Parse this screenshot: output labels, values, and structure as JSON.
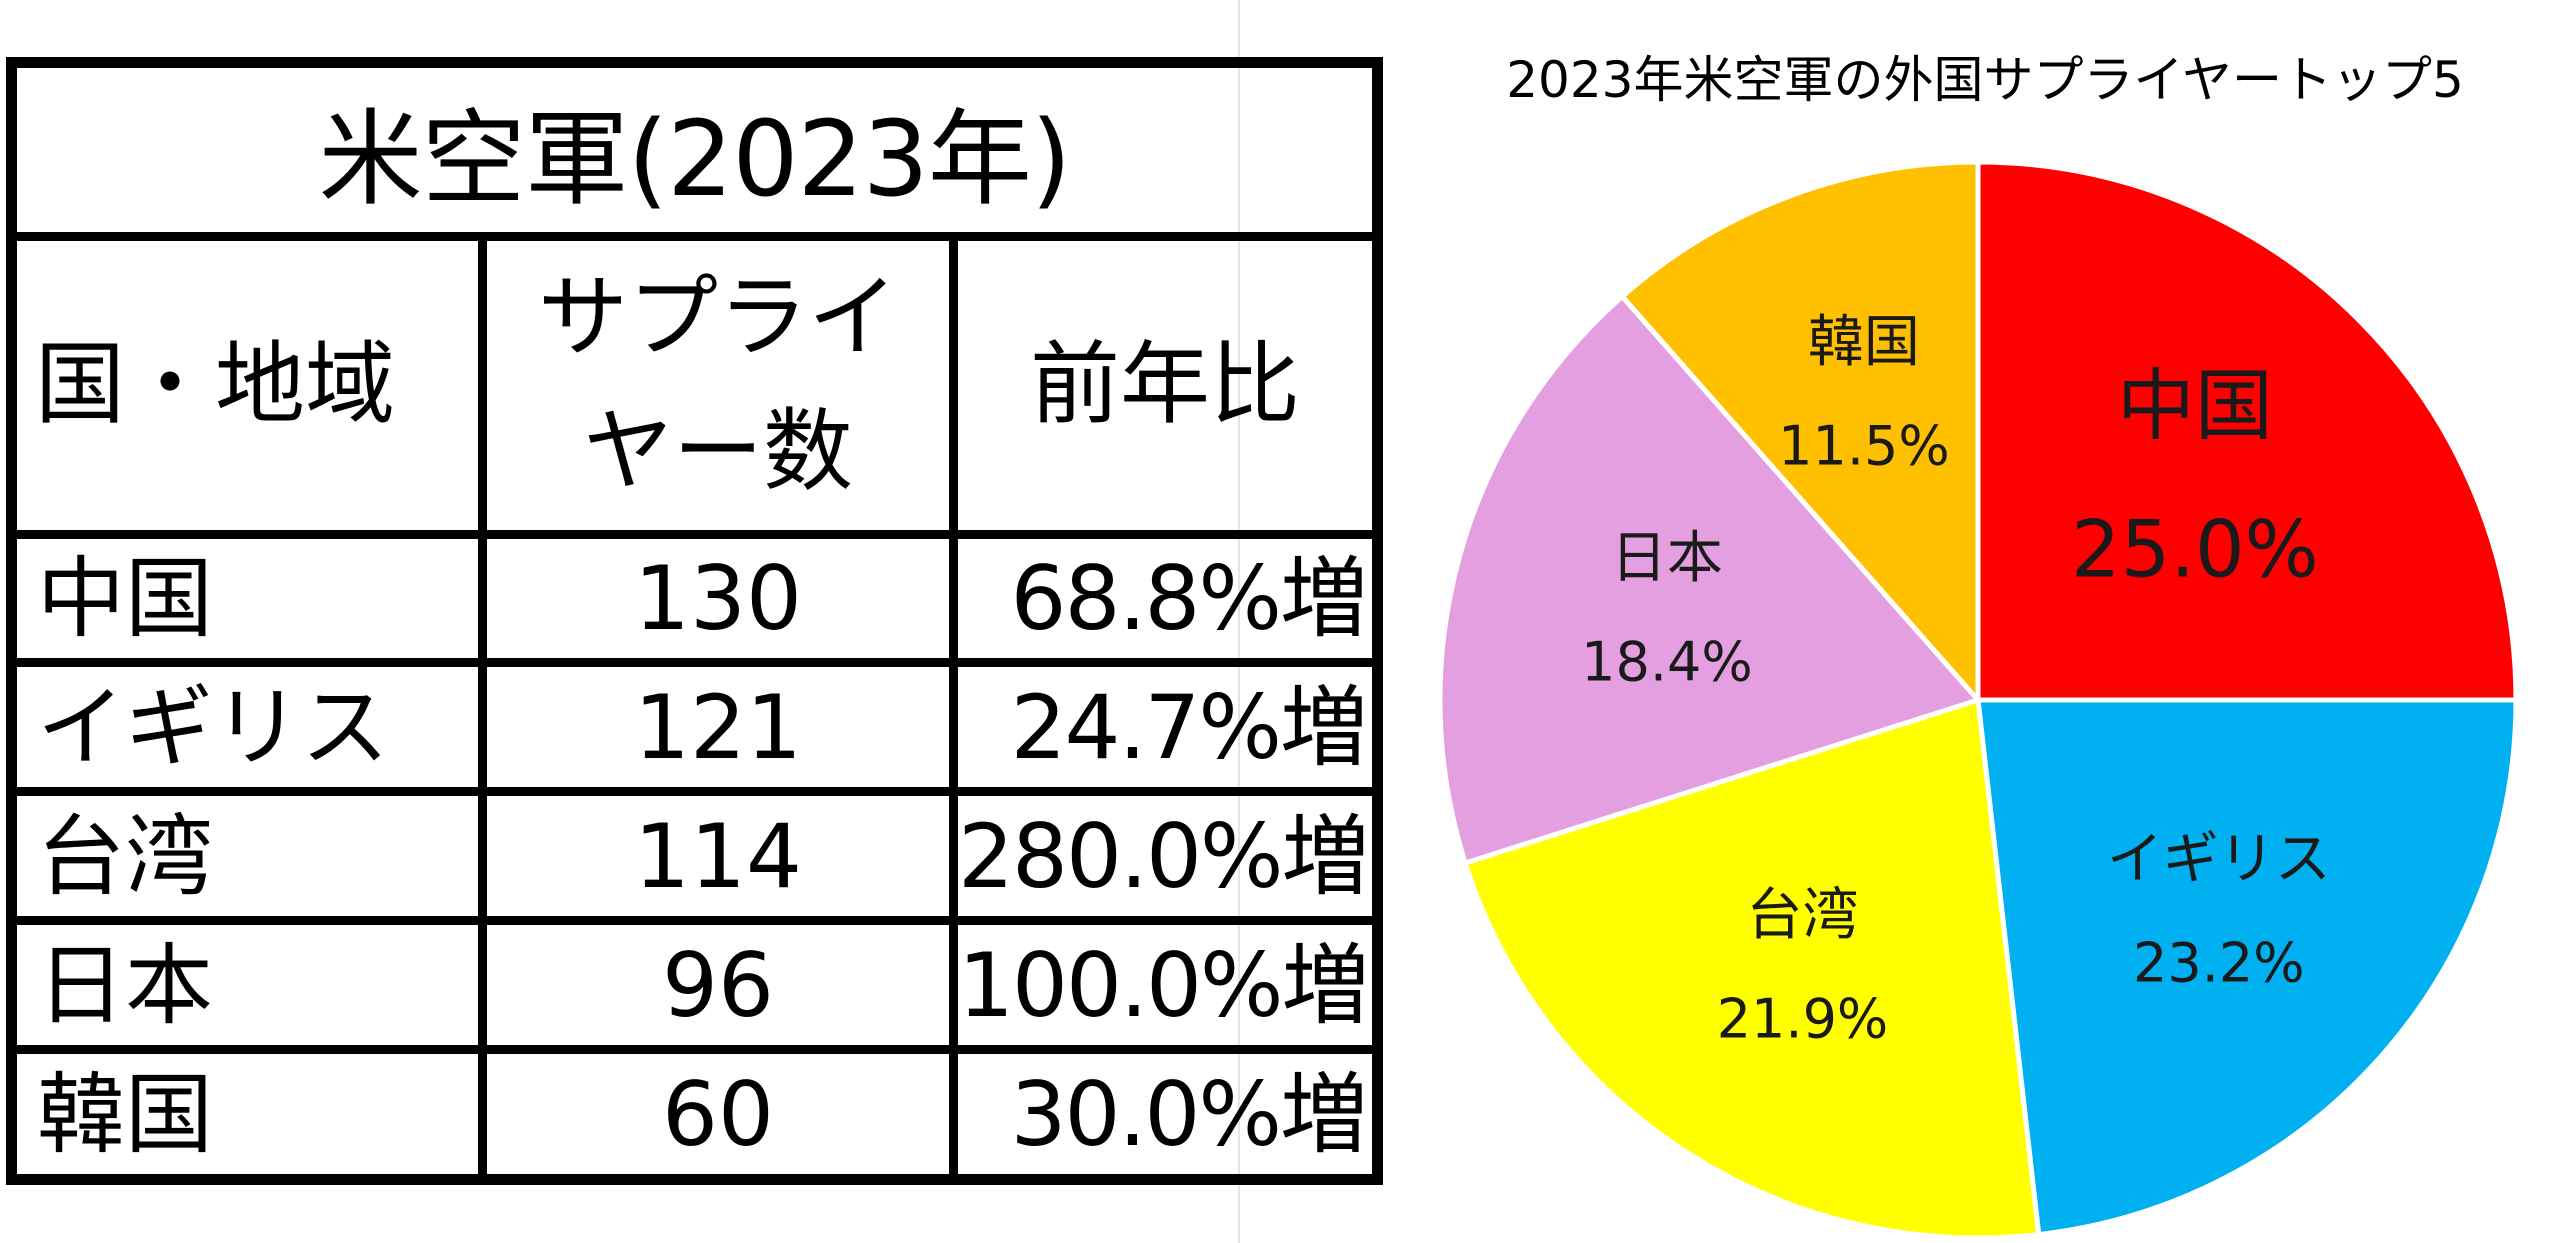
{
  "table": {
    "title": "米空軍(2023年)",
    "headers": {
      "country": "国・地域",
      "suppliers_line1": "サプライ",
      "suppliers_line2": "ヤー数",
      "yoy": "前年比"
    },
    "rows": [
      {
        "country": "中国",
        "suppliers": "130",
        "yoy": "68.8%増"
      },
      {
        "country": "イギリス",
        "suppliers": "121",
        "yoy": "24.7%増"
      },
      {
        "country": "台湾",
        "suppliers": "114",
        "yoy": "280.0%増"
      },
      {
        "country": "日本",
        "suppliers": "96",
        "yoy": "100.0%増"
      },
      {
        "country": "韓国",
        "suppliers": "60",
        "yoy": "30.0%増"
      }
    ]
  },
  "chart_data": {
    "type": "pie",
    "title": "2023年米空軍の外国サプライヤートップ5",
    "start_angle": "12 o'clock",
    "direction": "clockwise",
    "legend": "none",
    "slices": [
      {
        "label": "中国",
        "value": 25.0,
        "value_label": "25.0%",
        "color": "#ff0000",
        "label_color": "#1a1a1a",
        "emphasis": true
      },
      {
        "label": "イギリス",
        "value": 23.2,
        "value_label": "23.2%",
        "color": "#00b0f0",
        "label_color": "#1a1a1a",
        "emphasis": false
      },
      {
        "label": "台湾",
        "value": 21.9,
        "value_label": "21.9%",
        "color": "#ffff00",
        "label_color": "#1a1a1a",
        "emphasis": false
      },
      {
        "label": "日本",
        "value": 18.4,
        "value_label": "18.4%",
        "color": "#e39fdf",
        "label_color": "#1a1a1a",
        "emphasis": false
      },
      {
        "label": "韓国",
        "value": 11.5,
        "value_label": "11.5%",
        "color": "#ffc000",
        "label_color": "#1a1a1a",
        "emphasis": false
      }
    ]
  }
}
